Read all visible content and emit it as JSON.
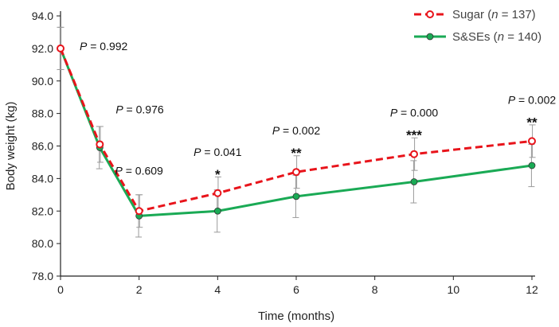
{
  "chart_data": {
    "type": "line",
    "xlabel": "Time (months)",
    "ylabel": "Body weight (kg)",
    "xlim": [
      0,
      12
    ],
    "ylim": [
      78,
      94
    ],
    "x_ticks": [
      "0",
      "2",
      "4",
      "6",
      "8",
      "10",
      "12"
    ],
    "y_ticks": [
      "78.0",
      "80.0",
      "82.0",
      "84.0",
      "86.0",
      "88.0",
      "90.0",
      "92.0",
      "94.0"
    ],
    "grid": false,
    "legend_position": "top-right",
    "series": [
      {
        "name_prefix": "Sugar (",
        "name_n": "n",
        "name_suffix": " = 137)",
        "color": "#e8141b",
        "style": "dashed",
        "marker": "open-circle",
        "x": [
          0,
          1,
          2,
          4,
          6,
          9,
          12
        ],
        "y": [
          92.0,
          86.1,
          82.0,
          83.1,
          84.4,
          85.5,
          86.3
        ],
        "err": [
          1.3,
          1.1,
          1.0,
          1.0,
          1.0,
          1.0,
          1.0
        ]
      },
      {
        "name_prefix": "S&SEs (",
        "name_n": "n",
        "name_suffix": " = 140)",
        "color": "#1aaa55",
        "style": "solid",
        "marker": "filled-circle",
        "x": [
          0,
          1,
          2,
          4,
          6,
          9,
          12
        ],
        "y": [
          92.0,
          85.9,
          81.7,
          82.0,
          82.9,
          83.8,
          84.8
        ],
        "err": [
          1.3,
          1.3,
          1.3,
          1.3,
          1.3,
          1.3,
          1.3
        ]
      }
    ],
    "annotations": [
      {
        "x": 0,
        "y_anchor": 92.0,
        "p_label": "P",
        "text": " = 0.992",
        "stars": ""
      },
      {
        "x": 1,
        "y_anchor": 86.1,
        "p_label": "P",
        "text": " = 0.976",
        "stars": ""
      },
      {
        "x": 2,
        "y_anchor": 82.0,
        "p_label": "P",
        "text": " = 0.609",
        "stars": ""
      },
      {
        "x": 4,
        "y_anchor": 83.1,
        "p_label": "P",
        "text": " = 0.041",
        "stars": "*"
      },
      {
        "x": 6,
        "y_anchor": 84.4,
        "p_label": "P",
        "text": " = 0.002",
        "stars": "**"
      },
      {
        "x": 9,
        "y_anchor": 85.5,
        "p_label": "P",
        "text": " = 0.000",
        "stars": "***"
      },
      {
        "x": 12,
        "y_anchor": 86.3,
        "p_label": "P",
        "text": " = 0.002",
        "stars": "**"
      }
    ]
  }
}
